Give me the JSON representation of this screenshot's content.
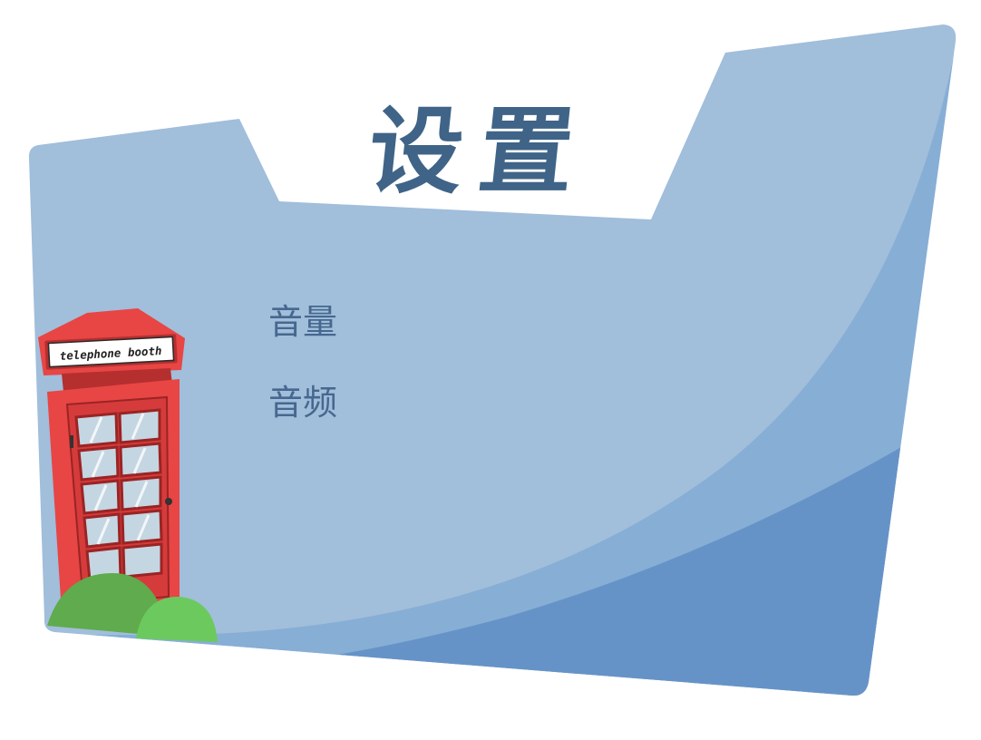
{
  "screen": {
    "title": "设置"
  },
  "menu": {
    "items": [
      {
        "label": "音量"
      },
      {
        "label": "音频"
      }
    ]
  },
  "decoration": {
    "booth_sign": "telephone booth"
  },
  "colors": {
    "folder_light": "#a1bedb",
    "folder_mid": "#87aed5",
    "folder_dark": "#6693c7",
    "title_text": "#3f6487",
    "menu_text": "#46688f",
    "booth_red": "#e84545",
    "booth_dark_red": "#b52f2f",
    "bush_dark": "#5fab4d",
    "bush_light": "#6cc95e"
  }
}
